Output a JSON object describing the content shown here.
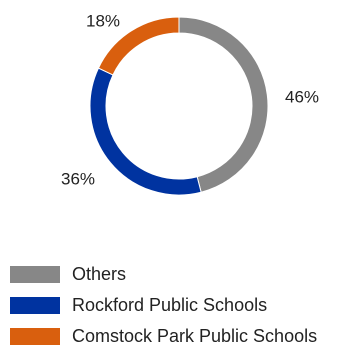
{
  "chart_data": {
    "type": "pie",
    "donut": true,
    "categories": [
      "Others",
      "Rockford Public Schools",
      "Comstock Park Public Schools"
    ],
    "values": [
      46,
      36,
      18
    ],
    "value_labels": [
      "46%",
      "36%",
      "18%"
    ],
    "colors": [
      "#878787",
      "#0033a0",
      "#d95f0e"
    ],
    "title": "",
    "legend_position": "bottom-left"
  }
}
